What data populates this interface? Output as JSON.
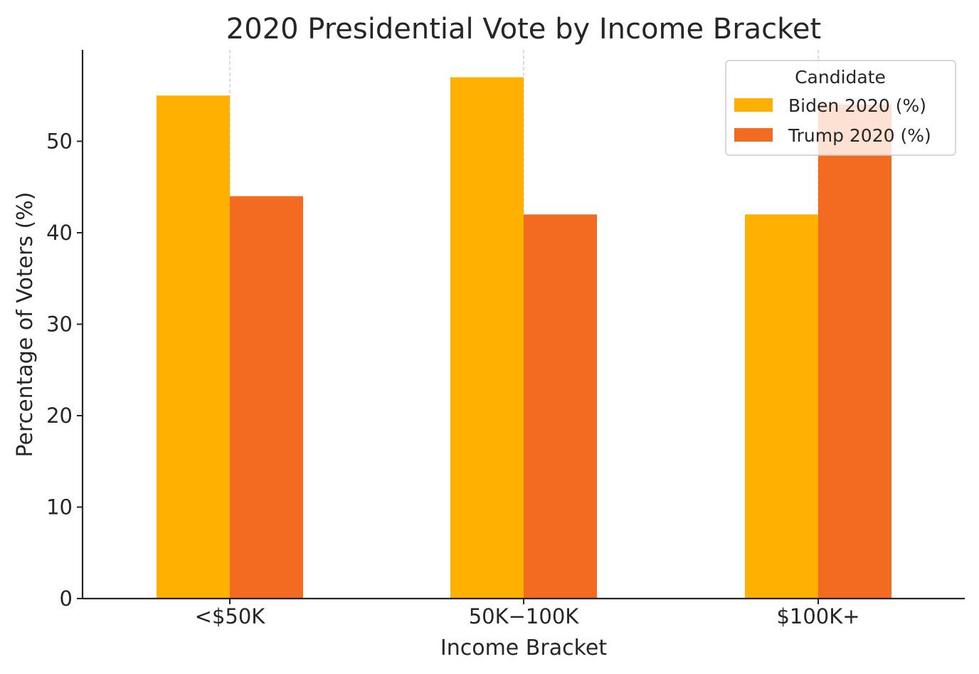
{
  "chart_data": {
    "type": "bar",
    "title": "2020 Presidential Vote by Income Bracket",
    "xlabel": "Income Bracket",
    "ylabel": "Percentage of Voters (%)",
    "categories": [
      "<$50K",
      "$50K-$100K",
      "$100K+"
    ],
    "category_tick_labels": [
      "<$50K",
      "50K−100K",
      "$100K+"
    ],
    "series": [
      {
        "name": "Biden 2020 (%)",
        "values": [
          55,
          57,
          42
        ],
        "color": "#FFB000"
      },
      {
        "name": "Trump 2020 (%)",
        "values": [
          44,
          42,
          54
        ],
        "color": "#F26B21"
      }
    ],
    "ylim": [
      0,
      60
    ],
    "yticks": [
      0,
      10,
      20,
      30,
      40,
      50
    ],
    "grid": "vertical dashed at category centers",
    "legend": {
      "title": "Candidate",
      "placement": "top-right"
    }
  }
}
